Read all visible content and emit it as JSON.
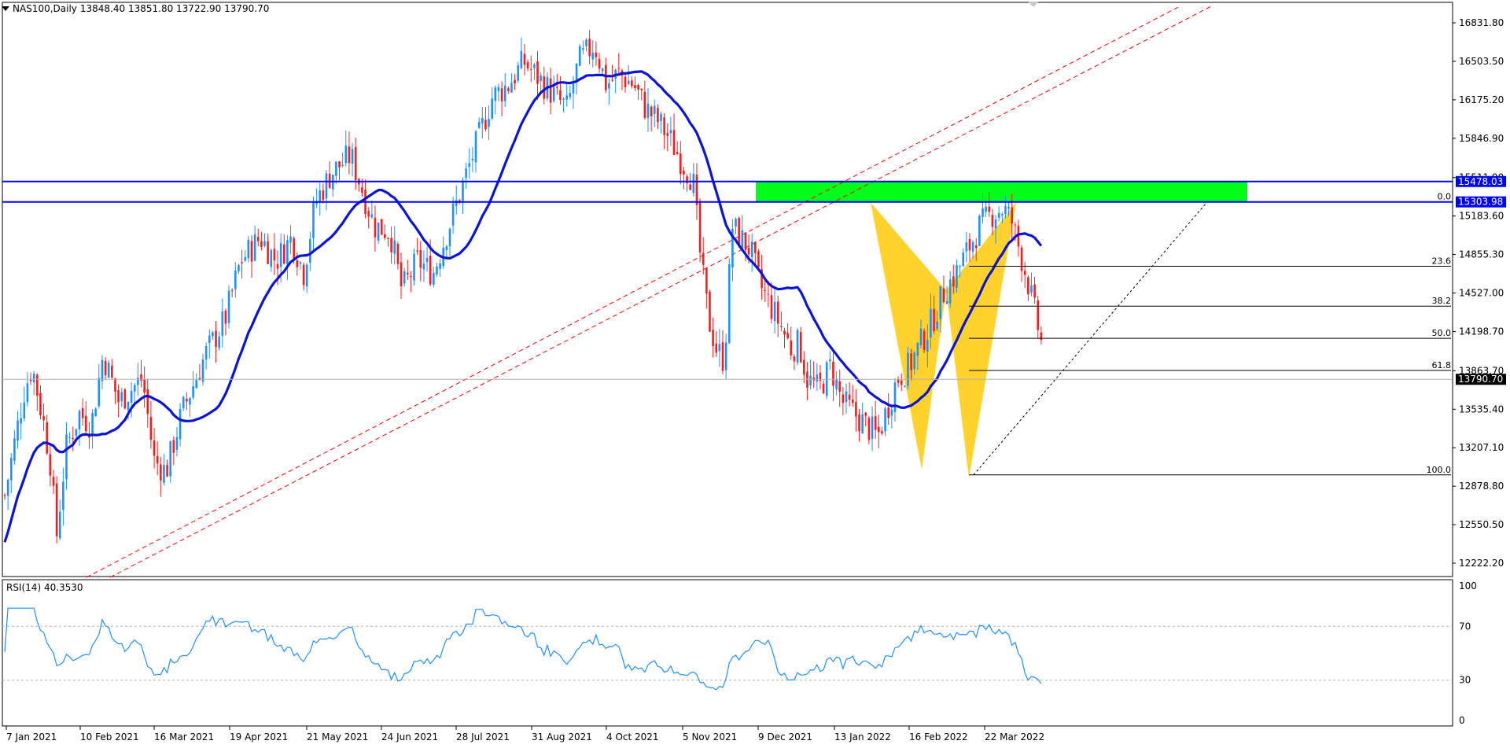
{
  "header": {
    "symbol": "NAS100,Daily",
    "ohlc": "13848.40 13851.80 13722.90 13790.70"
  },
  "price_axis": {
    "ticks": [
      "16831.80",
      "16503.50",
      "16175.20",
      "15846.90",
      "15511.90",
      "15183.60",
      "14855.30",
      "14527.00",
      "14198.70",
      "13863.70",
      "13535.40",
      "13207.10",
      "12878.80",
      "12550.50",
      "12222.20"
    ],
    "tick_values": [
      16831.8,
      16503.5,
      16175.2,
      15846.9,
      15511.9,
      15183.6,
      14855.3,
      14527.0,
      14198.7,
      13863.7,
      13535.4,
      13207.1,
      12878.8,
      12550.5,
      12222.2
    ],
    "current_price_label": "13790.70",
    "current_price": 13790.7,
    "resistance_upper_label": "15478.03",
    "resistance_upper": 15478.03,
    "resistance_lower_label": "15303.98",
    "resistance_lower": 15303.98
  },
  "time_axis": {
    "labels": [
      "7 Jan 2021",
      "10 Feb 2021",
      "16 Mar 2021",
      "19 Apr 2021",
      "21 May 2021",
      "24 Jun 2021",
      "28 Jul 2021",
      "31 Aug 2021",
      "4 Oct 2021",
      "5 Nov 2021",
      "9 Dec 2021",
      "13 Jan 2022",
      "16 Feb 2022",
      "22 Mar 2022"
    ]
  },
  "fibonacci": {
    "levels": [
      {
        "label": "0.0",
        "price": 15303.98
      },
      {
        "label": "23.6",
        "price": 14755.0
      },
      {
        "label": "38.2",
        "price": 14415.0
      },
      {
        "label": "50.0",
        "price": 14140.0
      },
      {
        "label": "61.8",
        "price": 13866.0
      },
      {
        "label": "100.0",
        "price": 12975.0
      }
    ]
  },
  "rsi": {
    "label": "RSI(14) 40.3530",
    "ticks": [
      "100",
      "70",
      "30",
      "0"
    ],
    "tick_values": [
      100,
      70,
      30,
      0
    ]
  },
  "colors": {
    "bull": "#1e90ff",
    "bear": "#ff1a1a",
    "ma": "#0a14d2",
    "resistance_line": "#0000ff",
    "zone": "#00ff1a",
    "pattern": "#ffc800",
    "channel": "#ff0000",
    "rsi": "#1e90ff",
    "tag_bg": "#0000ff"
  }
}
